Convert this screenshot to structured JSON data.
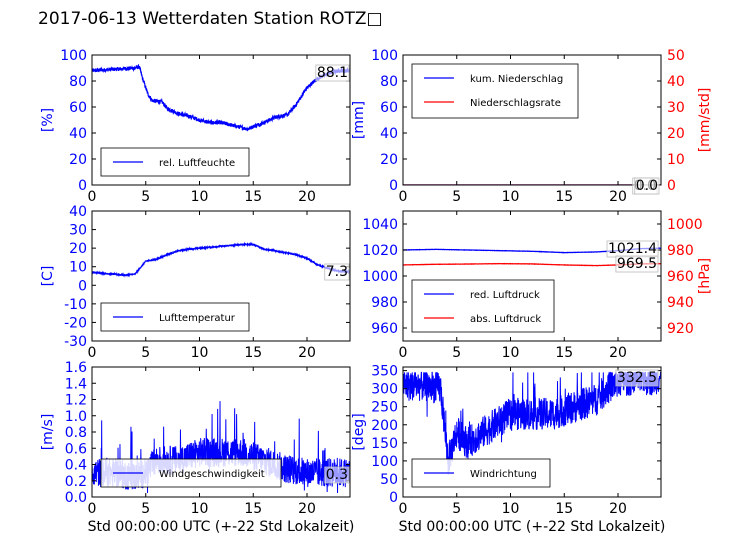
{
  "title": "2017-06-13 Wetterdaten Station ROTZ□",
  "colors": {
    "primary": "#0000ff",
    "secondary": "#ff0000",
    "light": "#8080ff"
  },
  "chart_data": [
    {
      "id": "humidity",
      "type": "line",
      "ylabel": "[%]",
      "xlim": [
        0,
        24
      ],
      "ylim": [
        0,
        100
      ],
      "xticks": [
        0,
        5,
        10,
        15,
        20
      ],
      "yticks": [
        0,
        20,
        40,
        60,
        80,
        100
      ],
      "legend_loc": "lower-left",
      "series": [
        {
          "name": "rel. Luftfeuchte",
          "color": "#0000ff",
          "noise": 1.5,
          "x": [
            0,
            1,
            2,
            3,
            4,
            4.4,
            4.7,
            5.2,
            5.6,
            6.5,
            7,
            8,
            9,
            10,
            11,
            12,
            13,
            14,
            14.5,
            15,
            16,
            17,
            17.5,
            18.2,
            19,
            20,
            21,
            22,
            23,
            24
          ],
          "y": [
            88,
            88.5,
            89,
            89.5,
            90,
            91,
            82,
            70,
            65,
            64,
            59,
            55,
            53,
            50,
            48,
            48,
            46,
            44,
            43,
            45,
            48,
            52,
            53,
            54,
            62,
            75,
            82,
            86,
            88,
            88.1
          ]
        }
      ],
      "annotations": [
        "88.1"
      ]
    },
    {
      "id": "precip",
      "type": "line",
      "ylabel": "[mm]",
      "ylabel2": "[mm/std]",
      "xlim": [
        0,
        24
      ],
      "ylim": [
        0,
        100
      ],
      "ylim2": [
        0,
        50
      ],
      "xticks": [
        0,
        5,
        10,
        15,
        20
      ],
      "yticks": [
        0,
        20,
        40,
        60,
        80,
        100
      ],
      "yticks2": [
        0,
        10,
        20,
        30,
        40,
        50
      ],
      "legend_loc": "upper-left",
      "series": [
        {
          "name": "kum. Niederschlag",
          "color": "#0000ff",
          "axis": "left",
          "noise": 0,
          "x": [
            0,
            24
          ],
          "y": [
            0,
            0
          ]
        },
        {
          "name": "Niederschlagsrate",
          "color": "#ff0000",
          "axis": "right",
          "noise": 0,
          "x": [
            0,
            24
          ],
          "y": [
            0,
            0
          ]
        }
      ],
      "annotations": [
        "0.0",
        "0.0"
      ]
    },
    {
      "id": "temperature",
      "type": "line",
      "ylabel": "[C]",
      "xlim": [
        0,
        24
      ],
      "ylim": [
        -30,
        40
      ],
      "xticks": [
        0,
        5,
        10,
        15,
        20
      ],
      "yticks": [
        -30,
        -20,
        -10,
        0,
        10,
        20,
        30,
        40
      ],
      "legend_loc": "lower-left",
      "series": [
        {
          "name": "Lufttemperatur",
          "color": "#0000ff",
          "noise": 0.3,
          "x": [
            0,
            1,
            2,
            3,
            4,
            5,
            6,
            7,
            8,
            9,
            10,
            11,
            12,
            13,
            14,
            15,
            16,
            17,
            18,
            19,
            20,
            21,
            22,
            23,
            24
          ],
          "y": [
            7,
            6.5,
            6,
            5.5,
            6,
            13,
            14,
            16.5,
            18.5,
            19.5,
            20,
            20.5,
            21,
            21.5,
            22,
            22,
            19.5,
            18.5,
            17.5,
            16.5,
            14.5,
            11,
            9,
            7.5,
            7.3
          ]
        }
      ],
      "annotations": [
        "7.3"
      ]
    },
    {
      "id": "pressure",
      "type": "line",
      "ylabel2": "[hPa]",
      "xlim": [
        0,
        24
      ],
      "ylim": [
        950,
        1050
      ],
      "ylim2": [
        910,
        1010
      ],
      "xticks": [
        0,
        5,
        10,
        15,
        20
      ],
      "yticks": [
        960,
        980,
        1000,
        1020,
        1040
      ],
      "yticks2": [
        920,
        940,
        960,
        980,
        1000
      ],
      "legend_loc": "lower-left",
      "series": [
        {
          "name": "red. Luftdruck",
          "color": "#0000ff",
          "axis": "left",
          "noise": 0.1,
          "x": [
            0,
            3,
            6,
            9,
            12,
            15,
            18,
            20,
            22,
            24
          ],
          "y": [
            1020,
            1020.5,
            1020,
            1019.5,
            1019,
            1018,
            1018.5,
            1019.5,
            1021,
            1021.4
          ]
        },
        {
          "name": "abs. Luftdruck",
          "color": "#ff0000",
          "axis": "right",
          "noise": 0.1,
          "x": [
            0,
            3,
            6,
            9,
            12,
            15,
            18,
            20,
            22,
            24
          ],
          "y": [
            968.5,
            969,
            969.2,
            969.5,
            969.3,
            968.5,
            968,
            968.5,
            969.3,
            969.5
          ]
        }
      ],
      "annotations": [
        "1021.4",
        "969.5"
      ]
    },
    {
      "id": "windspeed",
      "type": "line",
      "ylabel": "[m/s]",
      "xlabel": "Std 00:00:00 UTC (+-22 Std Lokalzeit)",
      "xlim": [
        0,
        24
      ],
      "ylim": [
        0,
        1.6
      ],
      "xticks": [
        0,
        5,
        10,
        15,
        20
      ],
      "yticks": [
        0.0,
        0.2,
        0.4,
        0.6,
        0.8,
        1.0,
        1.2,
        1.4,
        1.6
      ],
      "legend_loc": "lower-left",
      "series": [
        {
          "name": "Windgeschwindigkeit",
          "color": "#0000ff",
          "noise": 0.18,
          "spiky": true,
          "x": [
            0,
            2,
            4,
            5,
            6,
            8,
            10,
            12,
            14,
            16,
            18,
            20,
            22,
            24
          ],
          "y": [
            0.3,
            0.3,
            0.25,
            0.3,
            0.45,
            0.45,
            0.55,
            0.55,
            0.55,
            0.45,
            0.35,
            0.3,
            0.3,
            0.3
          ]
        }
      ],
      "annotations": [
        "0.3"
      ]
    },
    {
      "id": "winddir",
      "type": "line",
      "ylabel": "[deg]",
      "xlabel": "Std 00:00:00 UTC (+-22 Std Lokalzeit)",
      "xlim": [
        0,
        24
      ],
      "ylim": [
        0,
        360
      ],
      "xticks": [
        0,
        5,
        10,
        15,
        20
      ],
      "yticks": [
        0,
        50,
        100,
        150,
        200,
        250,
        300,
        350
      ],
      "legend_loc": "lower-left",
      "series": [
        {
          "name": "Windrichtung",
          "color": "#0000ff",
          "noise": 45,
          "spiky": true,
          "x": [
            0,
            2,
            3.5,
            4.2,
            5,
            6,
            8,
            10,
            12,
            14,
            16,
            18,
            19,
            20,
            21,
            22,
            23,
            24
          ],
          "y": [
            310,
            310,
            300,
            100,
            180,
            150,
            190,
            230,
            230,
            230,
            250,
            270,
            300,
            320,
            325,
            325,
            325,
            332.5
          ]
        }
      ],
      "annotations": [
        "332.5"
      ]
    }
  ]
}
